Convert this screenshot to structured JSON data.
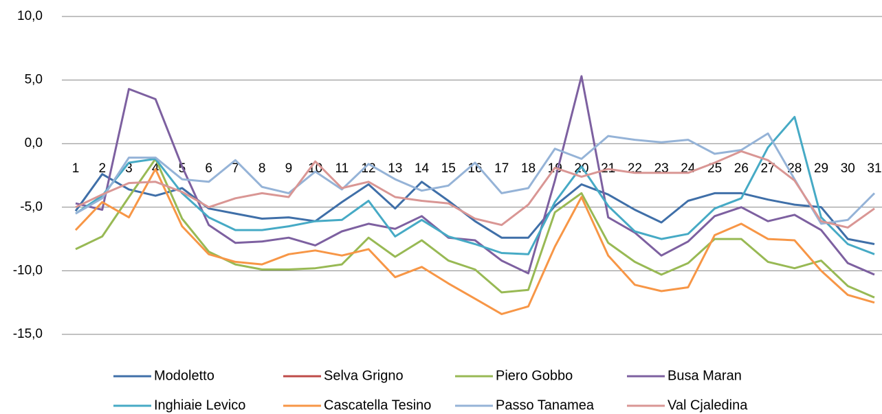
{
  "chart_data": {
    "type": "line",
    "categories": [
      "1",
      "2",
      "3",
      "4",
      "5",
      "6",
      "7",
      "8",
      "9",
      "10",
      "11",
      "12",
      "13",
      "14",
      "15",
      "16",
      "17",
      "18",
      "19",
      "20",
      "21",
      "22",
      "23",
      "24",
      "25",
      "26",
      "27",
      "28",
      "29",
      "30",
      "31"
    ],
    "series": [
      {
        "name": "Modoletto",
        "color": "#3f6fa8",
        "values": [
          -5.3,
          -2.4,
          -3.6,
          -4.1,
          -3.5,
          -5.1,
          -5.5,
          -5.9,
          -5.8,
          -6.1,
          -4.6,
          -3.2,
          -5.1,
          -3.0,
          -4.5,
          -6.1,
          -7.4,
          -7.4,
          -4.9,
          -3.2,
          -4.0,
          -5.2,
          -6.2,
          -4.5,
          -3.9,
          -3.9,
          -4.4,
          -4.8,
          -5.0,
          -7.5,
          -7.9
        ]
      },
      {
        "name": "Selva Grigno",
        "color": "#be4b48",
        "values": [
          null,
          null,
          null,
          null,
          null,
          null,
          null,
          null,
          null,
          null,
          null,
          null,
          null,
          null,
          null,
          null,
          null,
          null,
          null,
          null,
          null,
          null,
          null,
          null,
          null,
          null,
          null,
          null,
          null,
          null,
          null
        ]
      },
      {
        "name": "Piero Gobbo",
        "color": "#98b954",
        "values": [
          -8.3,
          -7.3,
          -4.2,
          -1.2,
          -5.9,
          -8.5,
          -9.5,
          -9.9,
          -9.9,
          -9.8,
          -9.5,
          -7.4,
          -8.9,
          -7.6,
          -9.2,
          -9.9,
          -11.7,
          -11.5,
          -5.4,
          -3.9,
          -7.8,
          -9.3,
          -10.3,
          -9.4,
          -7.5,
          -7.5,
          -9.3,
          -9.8,
          -9.2,
          -11.2,
          -12.1
        ]
      },
      {
        "name": "Busa Maran",
        "color": "#7d60a0",
        "values": [
          -4.7,
          -5.2,
          4.3,
          3.5,
          -1.8,
          -6.4,
          -7.8,
          -7.7,
          -7.4,
          -8.0,
          -6.9,
          -6.3,
          -6.7,
          -5.7,
          -7.4,
          -7.6,
          -9.2,
          -10.2,
          -2.9,
          5.3,
          -5.8,
          -7.0,
          -8.8,
          -7.7,
          -5.7,
          -5.0,
          -6.1,
          -5.6,
          -6.8,
          -9.4,
          -10.3
        ]
      },
      {
        "name": "Inghiaie Levico",
        "color": "#46aac5",
        "values": [
          -5.5,
          -4.1,
          -1.5,
          -1.2,
          -3.9,
          -5.8,
          -6.8,
          -6.8,
          -6.5,
          -6.1,
          -6.0,
          -4.5,
          -7.3,
          -6.0,
          -7.3,
          -7.9,
          -8.6,
          -8.7,
          -4.6,
          -1.8,
          -4.9,
          -6.9,
          -7.5,
          -7.1,
          -5.1,
          -4.3,
          -0.3,
          2.1,
          -5.8,
          -7.9,
          -8.7
        ]
      },
      {
        "name": "Cascatella Tesino",
        "color": "#f79646",
        "values": [
          -6.8,
          -4.6,
          -5.8,
          -2.0,
          -6.5,
          -8.7,
          -9.3,
          -9.5,
          -8.7,
          -8.4,
          -8.8,
          -8.3,
          -10.5,
          -9.7,
          -11.0,
          -12.2,
          -13.4,
          -12.8,
          -8.1,
          -4.2,
          -8.8,
          -11.1,
          -11.6,
          -11.3,
          -7.2,
          -6.3,
          -7.5,
          -7.6,
          -10.0,
          -11.9,
          -12.5
        ]
      },
      {
        "name": "Passo Tanamea",
        "color": "#95b3d7",
        "values": [
          -5.5,
          -4.3,
          -1.1,
          -1.1,
          -2.8,
          -3.0,
          -1.3,
          -3.4,
          -3.9,
          -2.2,
          -3.6,
          -1.6,
          -2.8,
          -3.7,
          -3.3,
          -1.5,
          -3.9,
          -3.5,
          -0.4,
          -1.2,
          0.6,
          0.3,
          0.1,
          0.3,
          -0.8,
          -0.5,
          0.8,
          -2.8,
          -6.3,
          -6.0,
          -3.9
        ]
      },
      {
        "name": "Val Cjaledina",
        "color": "#d99694",
        "values": [
          -5.0,
          -4.0,
          -3.1,
          -3.0,
          -3.8,
          -5.0,
          -4.3,
          -3.9,
          -4.2,
          -1.4,
          -3.5,
          -3.0,
          -4.2,
          -4.5,
          -4.7,
          -5.9,
          -6.4,
          -4.8,
          -1.9,
          -2.6,
          -2.0,
          -2.3,
          -2.3,
          -2.3,
          -1.5,
          -0.6,
          -1.3,
          -2.9,
          -6.1,
          -6.6,
          -5.1
        ]
      }
    ],
    "ylim": [
      -15,
      10
    ],
    "yticks": [
      {
        "value": -15,
        "label": "-15,0"
      },
      {
        "value": -10,
        "label": "-10,0"
      },
      {
        "value": -5,
        "label": "-5,0"
      },
      {
        "value": 0,
        "label": "0,0"
      },
      {
        "value": 5,
        "label": "5,0"
      },
      {
        "value": 10,
        "label": "10,0"
      }
    ],
    "grid": true,
    "legend": "bottom"
  }
}
